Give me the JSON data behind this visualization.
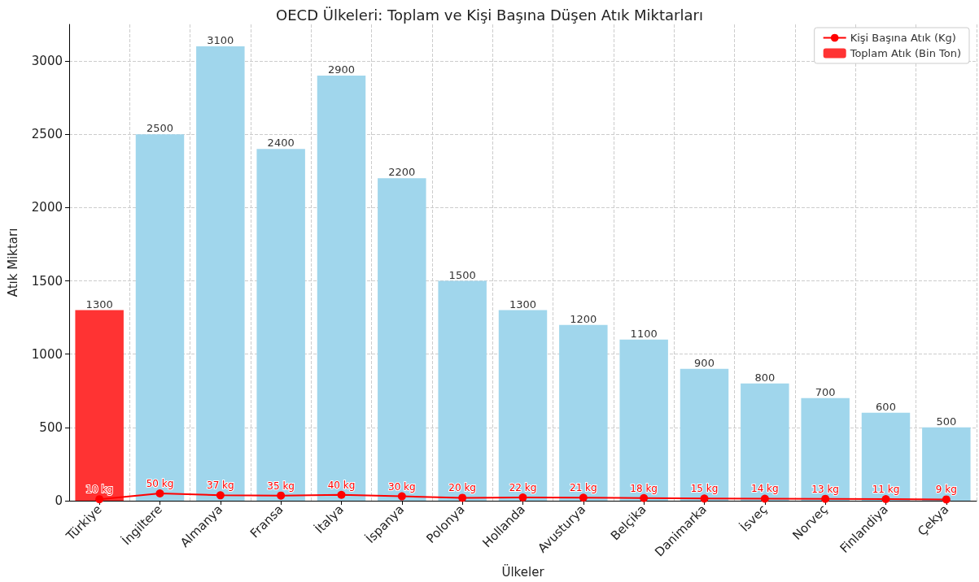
{
  "chart_data": {
    "type": "bar",
    "title": "OECD Ülkeleri: Toplam ve Kişi Başına Düşen Atık Miktarları",
    "xlabel": "Ülkeler",
    "ylabel": "Atık Miktarı",
    "categories": [
      "Türkiye",
      "İngiltere",
      "Almanya",
      "Fransa",
      "İtalya",
      "İspanya",
      "Polonya",
      "Hollanda",
      "Avusturya",
      "Belçika",
      "Danimarka",
      "İsveç",
      "Norveç",
      "Finlandiya",
      "Çekya"
    ],
    "series": [
      {
        "name": "Kişi Başına Atık (Kg)",
        "type": "line",
        "color": "#ff0000",
        "values": [
          10,
          50,
          37,
          35,
          40,
          30,
          20,
          22,
          21,
          18,
          15,
          14,
          13,
          11,
          9
        ],
        "value_labels": [
          "10 kg",
          "50 kg",
          "37 kg",
          "35 kg",
          "40 kg",
          "30 kg",
          "20 kg",
          "22 kg",
          "21 kg",
          "18 kg",
          "15 kg",
          "14 kg",
          "13 kg",
          "11 kg",
          "9 kg"
        ]
      },
      {
        "name": "Toplam Atık (Bin Ton)",
        "color": "#ff3333",
        "colors": [
          "#ff3333",
          "#a0d6ec",
          "#a0d6ec",
          "#a0d6ec",
          "#a0d6ec",
          "#a0d6ec",
          "#a0d6ec",
          "#a0d6ec",
          "#a0d6ec",
          "#a0d6ec",
          "#a0d6ec",
          "#a0d6ec",
          "#a0d6ec",
          "#a0d6ec",
          "#a0d6ec"
        ],
        "values": [
          1300,
          2500,
          3100,
          2400,
          2900,
          2200,
          1500,
          1300,
          1200,
          1100,
          900,
          800,
          700,
          600,
          500
        ],
        "data_labels": true
      }
    ],
    "ylim": [
      0,
      3250
    ],
    "yticks": [
      0,
      500,
      1000,
      1500,
      2000,
      2500,
      3000
    ],
    "grid": true,
    "legend": "top right",
    "marker": "circle",
    "line_style": "solid"
  }
}
